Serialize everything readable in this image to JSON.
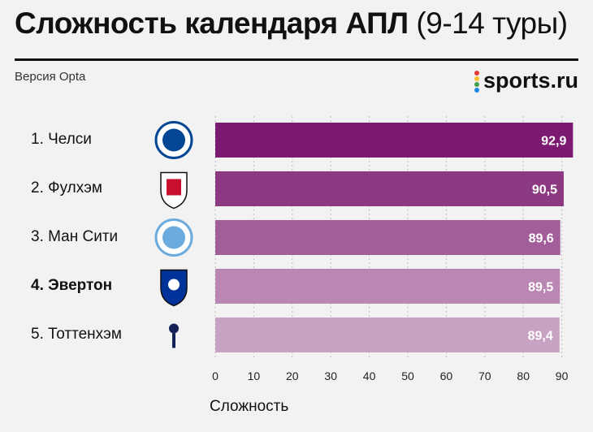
{
  "header": {
    "title_main": "Сложность календаря АПЛ",
    "title_range": "(9-14 туры)",
    "subtitle": "Версия Opta",
    "brand": "sports.ru",
    "brand_dot_colors": [
      "#e53935",
      "#fbc02d",
      "#43a047",
      "#1e88e5",
      "#8e24aa"
    ]
  },
  "chart_data": {
    "type": "bar",
    "orientation": "horizontal",
    "categories": [
      "1. Челси",
      "2. Фулхэм",
      "3. Ман Сити",
      "4. Эвертон",
      "5. Тоттенхэм"
    ],
    "values": [
      92.9,
      90.5,
      89.6,
      89.5,
      89.4
    ],
    "value_labels": [
      "92,9",
      "90,5",
      "89,6",
      "89,5",
      "89,4"
    ],
    "xlabel": "Сложность",
    "xlim": [
      0,
      93
    ],
    "xticks": [
      0,
      10,
      20,
      30,
      40,
      50,
      60,
      70,
      80,
      90
    ],
    "grid": true,
    "bar_colors": [
      "#7c1a72",
      "#8b3a82",
      "#a25e98",
      "#b987b2",
      "#c8a2c3"
    ],
    "bold_category_index": 3,
    "crest_icons": [
      "chelsea-crest-icon",
      "fulham-crest-icon",
      "man-city-crest-icon",
      "everton-crest-icon",
      "tottenham-crest-icon"
    ],
    "crest_colors": [
      "#034694",
      "#111111",
      "#6cabdd",
      "#003399",
      "#132257"
    ]
  }
}
